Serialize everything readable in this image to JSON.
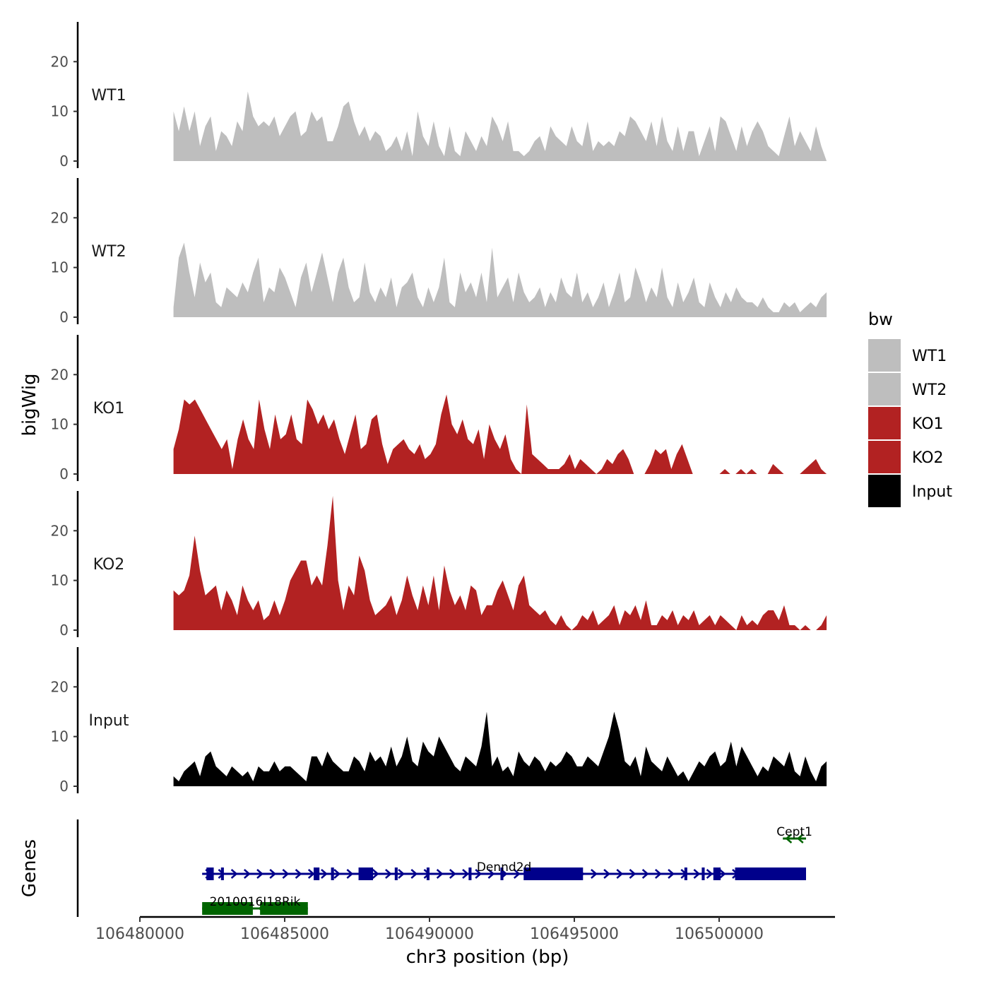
{
  "chart_data": {
    "type": "area",
    "y_axis_title": "bigWig",
    "genes_axis_title": "Genes",
    "x_axis_title": "chr3 position (bp)",
    "xlim": [
      106480000,
      106504000
    ],
    "x_ticks": [
      106480000,
      106485000,
      106490000,
      106495000,
      106500000
    ],
    "x_tick_labels": [
      "106480000",
      "106485000",
      "106490000",
      "106495000",
      "106500000"
    ],
    "ylim": [
      0,
      28
    ],
    "y_ticks": [
      0,
      10,
      20
    ],
    "y_tick_labels": [
      "0",
      "10",
      "20"
    ],
    "legend": {
      "title": "bw",
      "position": "right",
      "entries": [
        {
          "label": "WT1",
          "color": "#bebebe"
        },
        {
          "label": "WT2",
          "color": "#bebebe"
        },
        {
          "label": "KO1",
          "color": "#b22222"
        },
        {
          "label": "KO2",
          "color": "#b22222"
        },
        {
          "label": "Input",
          "color": "#000000"
        }
      ]
    },
    "x_start": 106481160,
    "x_end": 106503710,
    "series": [
      {
        "name": "WT1",
        "color": "#bebebe",
        "values": [
          10,
          6,
          11,
          6,
          10,
          3,
          7,
          9,
          2,
          6,
          5,
          3,
          8,
          6,
          14,
          9,
          7,
          8,
          7,
          9,
          5,
          7,
          9,
          10,
          5,
          6,
          10,
          8,
          9,
          4,
          4,
          7,
          11,
          12,
          8,
          5,
          7,
          4,
          6,
          5,
          2,
          3,
          5,
          2,
          6,
          1,
          10,
          5,
          3,
          8,
          3,
          1,
          7,
          2,
          1,
          6,
          4,
          2,
          5,
          3,
          9,
          7,
          4,
          8,
          2,
          2,
          1,
          2,
          4,
          5,
          2,
          7,
          5,
          4,
          3,
          7,
          4,
          3,
          8,
          2,
          4,
          3,
          4,
          3,
          6,
          5,
          9,
          8,
          6,
          4,
          8,
          3,
          9,
          4,
          2,
          7,
          2,
          6,
          6,
          1,
          4,
          7,
          2,
          9,
          8,
          5,
          2,
          7,
          3,
          6,
          8,
          6,
          3,
          2,
          1,
          5,
          9,
          3,
          6,
          4,
          2,
          7,
          3,
          0
        ]
      },
      {
        "name": "WT2",
        "color": "#bebebe",
        "values": [
          2,
          12,
          15,
          9,
          4,
          11,
          7,
          9,
          3,
          2,
          6,
          5,
          4,
          7,
          5,
          9,
          12,
          3,
          6,
          5,
          10,
          8,
          5,
          2,
          8,
          11,
          5,
          9,
          13,
          8,
          3,
          9,
          12,
          6,
          3,
          4,
          11,
          5,
          3,
          6,
          4,
          8,
          2,
          6,
          7,
          9,
          4,
          2,
          6,
          3,
          6,
          12,
          3,
          2,
          9,
          5,
          7,
          4,
          9,
          3,
          14,
          4,
          6,
          8,
          3,
          9,
          5,
          3,
          4,
          6,
          2,
          5,
          3,
          8,
          5,
          4,
          9,
          3,
          5,
          2,
          4,
          7,
          2,
          5,
          9,
          3,
          4,
          10,
          7,
          3,
          6,
          4,
          10,
          4,
          2,
          7,
          3,
          5,
          8,
          3,
          2,
          7,
          4,
          2,
          5,
          3,
          6,
          4,
          3,
          3,
          2,
          4,
          2,
          1,
          1,
          3,
          2,
          3,
          1,
          2,
          3,
          2,
          4,
          5
        ]
      },
      {
        "name": "KO1",
        "color": "#b22222",
        "values": [
          5,
          9,
          15,
          14,
          15,
          13,
          11,
          9,
          7,
          5,
          7,
          1,
          7,
          11,
          7,
          5,
          15,
          9,
          5,
          12,
          7,
          8,
          12,
          7,
          6,
          15,
          13,
          10,
          12,
          9,
          11,
          7,
          4,
          8,
          12,
          5,
          6,
          11,
          12,
          6,
          2,
          5,
          6,
          7,
          5,
          4,
          6,
          3,
          4,
          6,
          12,
          16,
          10,
          8,
          11,
          7,
          6,
          9,
          3,
          10,
          7,
          5,
          8,
          3,
          1,
          0,
          14,
          4,
          3,
          2,
          1,
          1,
          1,
          2,
          4,
          1,
          3,
          2,
          1,
          0,
          1,
          3,
          2,
          4,
          5,
          3,
          0,
          0,
          0,
          2,
          5,
          4,
          5,
          1,
          4,
          6,
          3,
          0,
          0,
          0,
          0,
          0,
          0,
          1,
          0,
          0,
          1,
          0,
          1,
          0,
          0,
          0,
          2,
          1,
          0,
          0,
          0,
          0,
          1,
          2,
          3,
          1,
          0
        ]
      },
      {
        "name": "KO2",
        "color": "#b22222",
        "values": [
          8,
          7,
          8,
          11,
          19,
          12,
          7,
          8,
          9,
          4,
          8,
          6,
          3,
          9,
          6,
          4,
          6,
          2,
          3,
          6,
          3,
          6,
          10,
          12,
          14,
          14,
          9,
          11,
          9,
          17,
          27,
          10,
          4,
          9,
          7,
          15,
          12,
          6,
          3,
          4,
          5,
          7,
          3,
          6,
          11,
          7,
          4,
          9,
          5,
          11,
          4,
          13,
          8,
          5,
          7,
          4,
          9,
          8,
          3,
          5,
          5,
          8,
          10,
          7,
          4,
          9,
          11,
          5,
          4,
          3,
          4,
          2,
          1,
          3,
          1,
          0,
          1,
          3,
          2,
          4,
          1,
          2,
          3,
          5,
          1,
          4,
          3,
          5,
          2,
          6,
          1,
          1,
          3,
          2,
          4,
          1,
          3,
          2,
          4,
          1,
          2,
          3,
          1,
          3,
          2,
          1,
          0,
          3,
          1,
          2,
          1,
          3,
          4,
          4,
          2,
          5,
          1,
          1,
          0,
          1,
          0,
          0,
          1,
          3
        ]
      },
      {
        "name": "Input",
        "color": "#000000",
        "values": [
          2,
          1,
          3,
          4,
          5,
          2,
          6,
          7,
          4,
          3,
          2,
          4,
          3,
          2,
          3,
          1,
          4,
          3,
          3,
          5,
          3,
          4,
          4,
          3,
          2,
          1,
          6,
          6,
          4,
          7,
          5,
          4,
          3,
          3,
          6,
          5,
          3,
          7,
          5,
          6,
          4,
          8,
          4,
          6,
          10,
          5,
          4,
          9,
          7,
          6,
          10,
          8,
          6,
          4,
          3,
          6,
          5,
          4,
          8,
          15,
          4,
          6,
          3,
          4,
          2,
          7,
          5,
          4,
          6,
          5,
          3,
          5,
          4,
          5,
          7,
          6,
          4,
          4,
          6,
          5,
          4,
          7,
          10,
          15,
          11,
          5,
          4,
          6,
          2,
          8,
          5,
          4,
          3,
          6,
          4,
          2,
          3,
          1,
          3,
          5,
          4,
          6,
          7,
          4,
          5,
          9,
          4,
          8,
          6,
          4,
          2,
          4,
          3,
          6,
          5,
          4,
          7,
          3,
          2,
          6,
          3,
          1,
          4,
          5
        ]
      }
    ],
    "genes": [
      {
        "name": "Cept1",
        "strand": "-",
        "color": "#006400",
        "start": 106502200,
        "end": 106503000,
        "exons": []
      },
      {
        "name": "Dennd2d",
        "strand": "+",
        "color": "#00008b",
        "start": 106482150,
        "end": 106503000,
        "exons": [
          [
            106482300,
            106482550
          ],
          [
            106482800,
            106482900
          ],
          [
            106486000,
            106486200
          ],
          [
            106486600,
            106486700
          ],
          [
            106487550,
            106488050
          ],
          [
            106488800,
            106488900
          ],
          [
            106489900,
            106490000
          ],
          [
            106491350,
            106491450
          ],
          [
            106492450,
            106492550
          ],
          [
            106493250,
            106495300
          ],
          [
            106498800,
            106498900
          ],
          [
            106499400,
            106499500
          ],
          [
            106499800,
            106500050
          ],
          [
            106500550,
            106503000
          ]
        ]
      },
      {
        "name": "2010016I18Rik",
        "strand": "-",
        "color": "#006400",
        "start": 106482150,
        "end": 106485800,
        "exons": [
          [
            106482150,
            106483900
          ],
          [
            106484150,
            106485800
          ]
        ]
      }
    ]
  }
}
